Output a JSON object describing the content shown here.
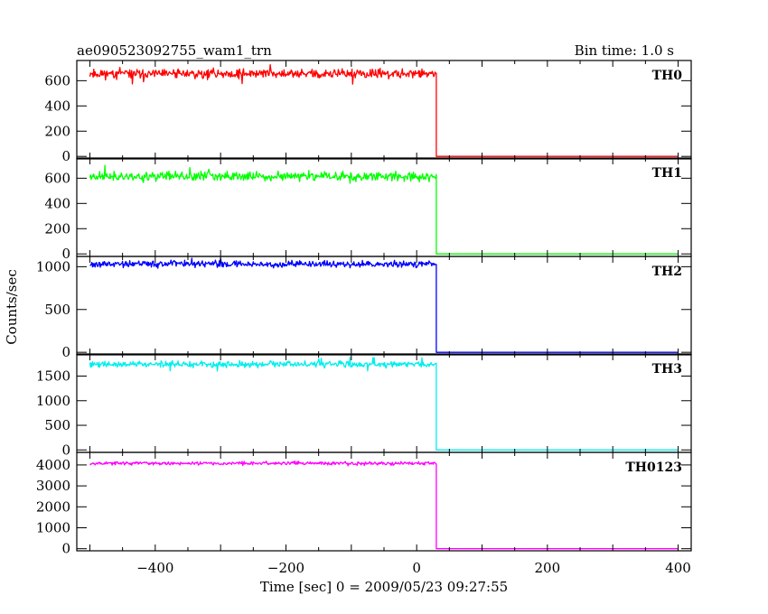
{
  "chart_data": {
    "type": "line",
    "title": "ae090523092755_wam1_trn",
    "subtitle": "Bin time: 1.0 s",
    "xlabel": "Time [sec] 0 = 2009/05/23 09:27:55",
    "ylabel": "Counts/sec",
    "xlim": [
      -520,
      420
    ],
    "x_ticks": [
      -400,
      -200,
      0,
      200,
      400
    ],
    "x_tick_labels": [
      "−400",
      "−200",
      "0",
      "200",
      "400"
    ],
    "grid": false,
    "series": [
      {
        "name": "TH0",
        "color": "#ff0000",
        "ylim": [
          -20,
          760
        ],
        "y_ticks": [
          0,
          200,
          400,
          600
        ],
        "pre_level": 655,
        "noise": 28,
        "noise_seed": 11,
        "x_start": -500,
        "x_drop": 30,
        "x_end": 400,
        "post_level": 0
      },
      {
        "name": "TH1",
        "color": "#00ff00",
        "ylim": [
          -20,
          760
        ],
        "y_ticks": [
          0,
          200,
          400,
          600
        ],
        "pre_level": 615,
        "noise": 28,
        "noise_seed": 23,
        "x_start": -500,
        "x_drop": 30,
        "x_end": 400,
        "post_level": 0
      },
      {
        "name": "TH2",
        "color": "#0000ff",
        "ylim": [
          -30,
          1120
        ],
        "y_ticks": [
          0,
          500,
          1000
        ],
        "pre_level": 1030,
        "noise": 30,
        "noise_seed": 37,
        "x_start": -500,
        "x_drop": 30,
        "x_end": 400,
        "post_level": 0
      },
      {
        "name": "TH3",
        "color": "#00eeee",
        "ylim": [
          -50,
          1950
        ],
        "y_ticks": [
          0,
          500,
          1000,
          1500
        ],
        "pre_level": 1740,
        "noise": 45,
        "noise_seed": 41,
        "x_start": -500,
        "x_drop": 30,
        "x_end": 400,
        "post_level": 0
      },
      {
        "name": "TH0123",
        "color": "#ff00ff",
        "ylim": [
          -100,
          4600
        ],
        "y_ticks": [
          0,
          1000,
          2000,
          3000,
          4000
        ],
        "pre_level": 4080,
        "noise": 60,
        "noise_seed": 53,
        "x_start": -500,
        "x_drop": 30,
        "x_end": 400,
        "post_level": 0
      }
    ]
  }
}
